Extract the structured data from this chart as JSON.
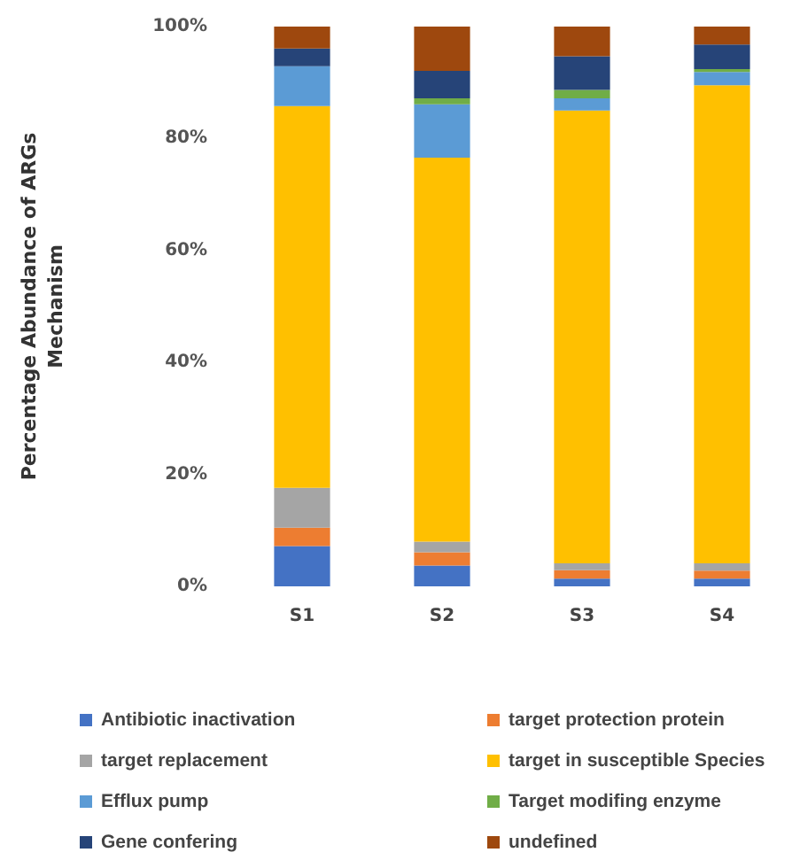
{
  "chart_data": {
    "type": "bar",
    "stacked": true,
    "ylabel": "Percentage Abundance of ARGs\nMechanism",
    "categories": [
      "S1",
      "S2",
      "S3",
      "S4"
    ],
    "series": [
      {
        "name": "Antibiotic inactivation",
        "color": "#4472c4",
        "values": [
          7.2,
          3.7,
          1.4,
          1.4
        ]
      },
      {
        "name": "target protection protein",
        "color": "#ed7d31",
        "values": [
          3.3,
          2.4,
          1.5,
          1.4
        ]
      },
      {
        "name": "target replacement",
        "color": "#a5a5a5",
        "values": [
          7.1,
          1.9,
          1.2,
          1.3
        ]
      },
      {
        "name": "target in susceptible Species",
        "color": "#ffc000",
        "values": [
          68.2,
          68.6,
          80.9,
          85.4
        ]
      },
      {
        "name": "Efflux pump",
        "color": "#5b9bd5",
        "values": [
          7.1,
          9.5,
          2.2,
          2.4
        ]
      },
      {
        "name": "Target modifing enzyme",
        "color": "#70ad47",
        "values": [
          0,
          1.1,
          1.5,
          0.5
        ]
      },
      {
        "name": "Gene confering",
        "color": "#264478",
        "values": [
          3.2,
          4.9,
          6.0,
          4.4
        ]
      },
      {
        "name": "undefined",
        "color": "#9e480e",
        "values": [
          3.9,
          7.9,
          5.3,
          3.2
        ]
      }
    ],
    "ylim": [
      0,
      100
    ],
    "yticks": [
      {
        "value": 0,
        "label": "0%"
      },
      {
        "value": 20,
        "label": "20%"
      },
      {
        "value": 40,
        "label": "40%"
      },
      {
        "value": 60,
        "label": "60%"
      },
      {
        "value": 80,
        "label": "80%"
      },
      {
        "value": 100,
        "label": "100%"
      }
    ],
    "grid": false,
    "legend": "bottom"
  }
}
